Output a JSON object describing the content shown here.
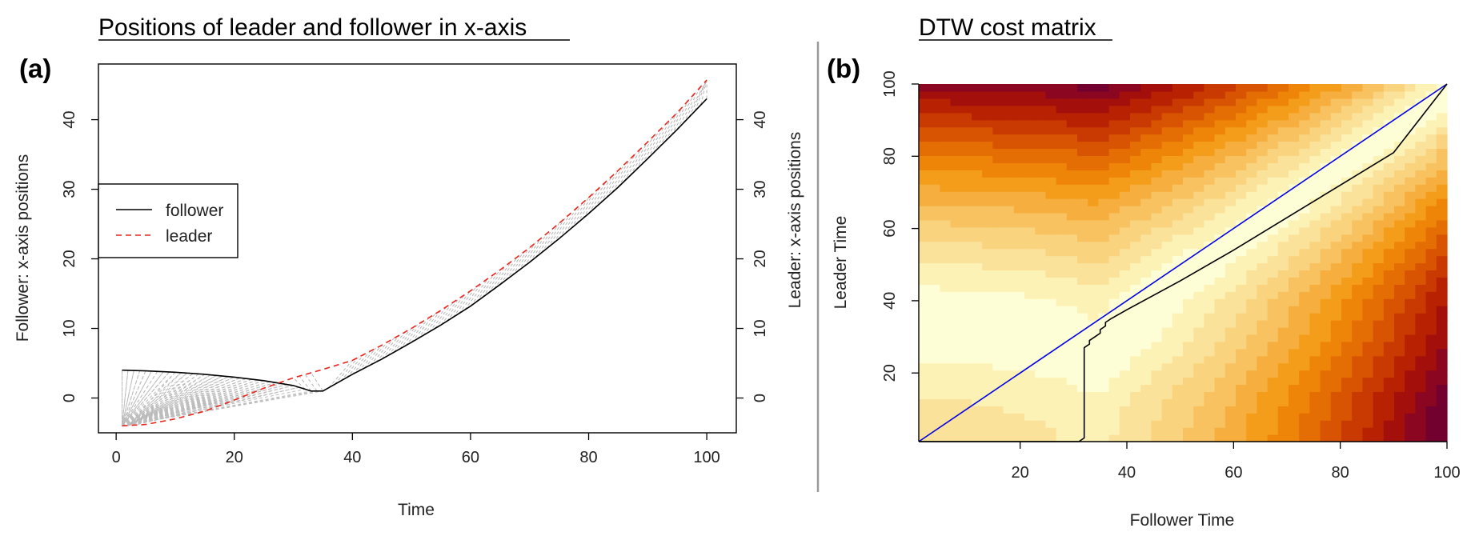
{
  "chart_data": [
    {
      "type": "line",
      "panel_label": "(a)",
      "title": "Positions of leader and follower in x-axis",
      "xlabel": "Time",
      "ylabel_left": "Follower: x-axis positions",
      "ylabel_right": "Leader: x-axis positions",
      "xlim": [
        -3,
        105
      ],
      "ylim_left": [
        -5,
        48
      ],
      "ylim_right": [
        -5,
        48
      ],
      "x_ticks": [
        "0",
        "20",
        "40",
        "60",
        "80",
        "100"
      ],
      "y_ticks_left": [
        "0",
        "10",
        "20",
        "30",
        "40"
      ],
      "y_ticks_right": [
        "0",
        "10",
        "20",
        "30",
        "40"
      ],
      "legend": {
        "position": "left",
        "entries": [
          "follower",
          "leader"
        ]
      },
      "series": [
        {
          "name": "follower",
          "style": "solid",
          "color": "#000000",
          "x": [
            1,
            5,
            10,
            15,
            20,
            25,
            30,
            33,
            35,
            40,
            45,
            50,
            55,
            60,
            65,
            70,
            75,
            80,
            85,
            90,
            95,
            100
          ],
          "y": [
            4,
            3.9,
            3.7,
            3.4,
            3.0,
            2.5,
            1.8,
            1.0,
            1.0,
            3.4,
            5.6,
            8.0,
            10.5,
            13.2,
            16.3,
            19.5,
            22.9,
            26.5,
            30.3,
            34.4,
            38.6,
            43.0
          ]
        },
        {
          "name": "leader",
          "style": "dashed",
          "color": "#e8261e",
          "x": [
            1,
            5,
            10,
            15,
            20,
            25,
            30,
            35,
            40,
            45,
            50,
            55,
            60,
            65,
            70,
            75,
            80,
            85,
            90,
            95,
            100
          ],
          "y": [
            -4,
            -3.8,
            -3.0,
            -1.9,
            -0.3,
            1.4,
            2.9,
            4.1,
            5.4,
            7.6,
            10.0,
            12.6,
            15.4,
            18.4,
            21.6,
            25.1,
            28.8,
            32.7,
            36.8,
            41.0,
            45.7
          ]
        }
      ]
    },
    {
      "type": "heatmap",
      "panel_label": "(b)",
      "title": "DTW cost matrix",
      "xlabel": "Follower Time",
      "ylabel": "Leader Time",
      "xlim": [
        1,
        100
      ],
      "ylim": [
        1,
        100
      ],
      "x_ticks": [
        "20",
        "40",
        "60",
        "80",
        "100"
      ],
      "y_ticks": [
        "20",
        "40",
        "60",
        "80",
        "100"
      ],
      "colormap": [
        "#fefed6",
        "#fdf2b6",
        "#fbe29a",
        "#f9d37e",
        "#f8c261",
        "#f6af3e",
        "#f49d1a",
        "#ee8408",
        "#e46e04",
        "#d85402",
        "#c83a02",
        "#b82102",
        "#a30f0b",
        "#8b0620",
        "#72012f"
      ],
      "series": [
        {
          "name": "",
          "style": "solid",
          "color": "#0000e6",
          "x": [
            1,
            100
          ],
          "y": [
            1,
            100
          ]
        },
        {
          "name": "",
          "style": "solid",
          "color": "#000000",
          "x": [
            1,
            31,
            32,
            32,
            33,
            33,
            34,
            35,
            35,
            36,
            36,
            37,
            40,
            50,
            60,
            70,
            80,
            90,
            100
          ],
          "y": [
            1,
            1,
            2,
            27,
            28,
            29,
            30,
            31,
            32,
            33,
            34,
            35,
            37.5,
            45.5,
            54,
            63,
            72,
            81,
            100
          ]
        }
      ]
    }
  ]
}
